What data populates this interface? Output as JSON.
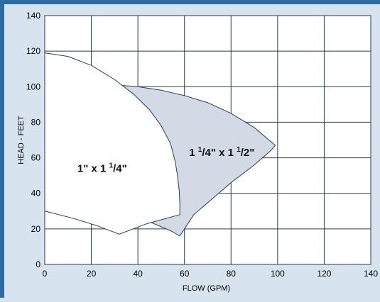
{
  "chart_data": {
    "type": "area",
    "title": "",
    "xlabel": "FLOW (GPM)",
    "ylabel": "HEAD - FEET",
    "xlim": [
      0,
      140
    ],
    "ylim": [
      0,
      140
    ],
    "x_ticks": [
      0,
      20,
      40,
      60,
      80,
      100,
      120,
      140
    ],
    "y_ticks": [
      0,
      20,
      40,
      60,
      80,
      100,
      120,
      140
    ],
    "grid": true,
    "regions": [
      {
        "label_main": "1\" x 1 ",
        "label_num": "1",
        "label_den": "4\"",
        "fill": "#ffffff",
        "stroke": "#2b3a55",
        "points": [
          [
            0,
            119
          ],
          [
            10,
            117
          ],
          [
            20,
            112
          ],
          [
            30,
            104
          ],
          [
            38,
            96
          ],
          [
            45,
            87
          ],
          [
            50,
            78
          ],
          [
            54,
            68
          ],
          [
            56,
            58
          ],
          [
            57,
            50
          ],
          [
            57.7,
            42
          ],
          [
            58,
            35
          ],
          [
            58,
            28
          ],
          [
            44,
            23
          ],
          [
            32,
            17
          ],
          [
            22,
            22
          ],
          [
            12,
            26
          ],
          [
            0,
            30
          ]
        ]
      },
      {
        "label_main": "1 ",
        "label_num": "1",
        "label_den": "4\"",
        "label_mid": " x 1 ",
        "label_num2": "1",
        "label_den2": "2\"",
        "fill": "#d4d9e6",
        "stroke": "#2b3a55",
        "points": [
          [
            0,
            41
          ],
          [
            0,
            30
          ],
          [
            12,
            30
          ],
          [
            22,
            29
          ],
          [
            30,
            27
          ],
          [
            45,
            24
          ],
          [
            54,
            19
          ],
          [
            58,
            16
          ],
          [
            64,
            28
          ],
          [
            72,
            37
          ],
          [
            80,
            46
          ],
          [
            90,
            56
          ],
          [
            97,
            64
          ],
          [
            99,
            67
          ],
          [
            90,
            77
          ],
          [
            80,
            85
          ],
          [
            70,
            91
          ],
          [
            60,
            95
          ],
          [
            50,
            98
          ],
          [
            40,
            100
          ],
          [
            30,
            101
          ]
        ]
      }
    ]
  }
}
